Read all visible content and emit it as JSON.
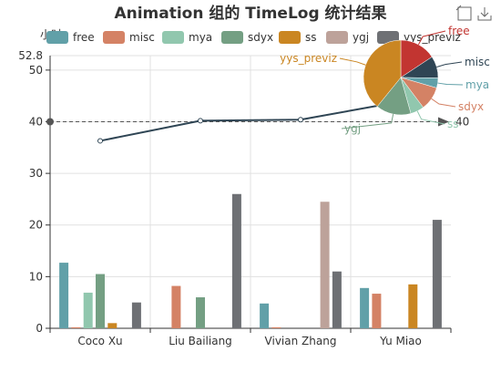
{
  "chart_data": {
    "type": "bar",
    "title": "Animation 组的 TimeLog 统计结果",
    "ylabel": "小时",
    "ylim": [
      0,
      52.8
    ],
    "y_ticks": [
      0,
      10,
      20,
      30,
      40,
      50
    ],
    "y_max_label": "52.8",
    "grid": true,
    "legend_position": "top",
    "categories": [
      "Coco Xu",
      "Liu Bailiang",
      "Vivian Zhang",
      "Yu Miao"
    ],
    "series": [
      {
        "name": "free",
        "color": "#61a0a8",
        "values": [
          12.7,
          0,
          4.8,
          7.8
        ]
      },
      {
        "name": "misc",
        "color": "#d48265",
        "values": [
          0.2,
          8.2,
          0.2,
          6.7
        ]
      },
      {
        "name": "mya",
        "color": "#91c7ae",
        "values": [
          6.9,
          0,
          0,
          0
        ]
      },
      {
        "name": "sdyx",
        "color": "#749f83",
        "values": [
          10.5,
          6.0,
          0,
          0
        ]
      },
      {
        "name": "ss",
        "color": "#ca8622",
        "values": [
          1.0,
          0,
          0,
          8.5
        ]
      },
      {
        "name": "ygj",
        "color": "#bda29a",
        "values": [
          0,
          0,
          24.5,
          0
        ]
      },
      {
        "name": "yys_previz",
        "color": "#6e7074",
        "values": [
          5.0,
          26.0,
          11.0,
          21.0
        ]
      }
    ],
    "line": {
      "values": [
        36.3,
        40.2,
        40.4,
        43.9
      ],
      "color": "#2f4554"
    },
    "mark_line": {
      "value": 40,
      "label": "40"
    },
    "pie": {
      "slices": [
        {
          "name": "free",
          "value": 25.3,
          "color": "#c23531"
        },
        {
          "name": "misc",
          "value": 15.3,
          "color": "#2f4554"
        },
        {
          "name": "mya",
          "value": 6.9,
          "color": "#61a0a8"
        },
        {
          "name": "sdyx",
          "value": 16.5,
          "color": "#d48265"
        },
        {
          "name": "ss",
          "value": 9.5,
          "color": "#91c7ae"
        },
        {
          "name": "ygj",
          "value": 24.5,
          "color": "#749f83"
        },
        {
          "name": "yys_previz",
          "value": 63.0,
          "color": "#ca8622"
        }
      ]
    }
  },
  "toolbar": {
    "icons": [
      "restore-icon",
      "save-image-icon"
    ]
  }
}
